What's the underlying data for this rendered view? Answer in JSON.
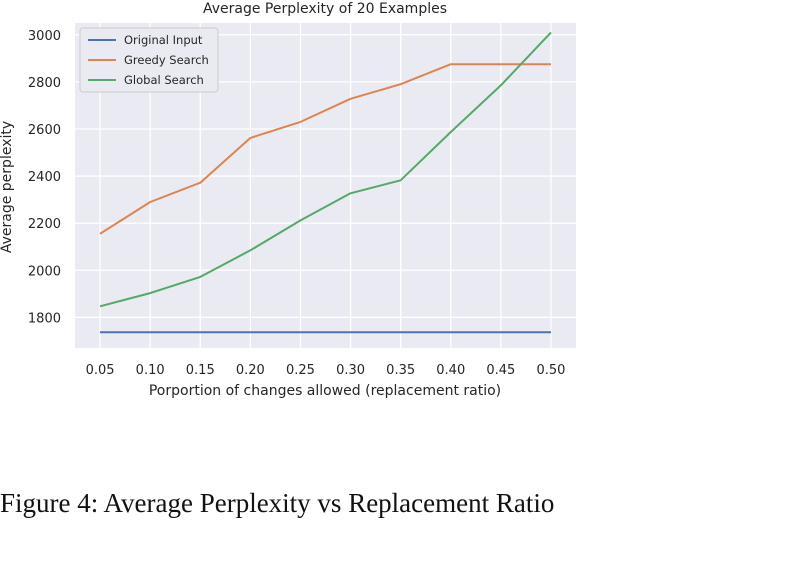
{
  "chart_data": {
    "type": "line",
    "title": "Average Perplexity of 20 Examples",
    "xlabel": "Porportion of changes allowed (replacement ratio)",
    "ylabel": "Average perplexity",
    "x": [
      0.05,
      0.1,
      0.15,
      0.2,
      0.25,
      0.3,
      0.35,
      0.4,
      0.45,
      0.5
    ],
    "x_tick_labels": [
      "0.05",
      "0.10",
      "0.15",
      "0.20",
      "0.25",
      "0.30",
      "0.35",
      "0.40",
      "0.45",
      "0.50"
    ],
    "y_ticks": [
      1800,
      2000,
      2200,
      2400,
      2600,
      2800,
      3000
    ],
    "xlim": [
      0.025,
      0.525
    ],
    "ylim": [
      1670,
      3050
    ],
    "grid": true,
    "legend": "top-left",
    "series": [
      {
        "name": "Original Input",
        "color": "#4c72b0",
        "values": [
          1737,
          1737,
          1737,
          1737,
          1737,
          1737,
          1737,
          1737,
          1737,
          1737
        ]
      },
      {
        "name": "Greedy Search",
        "color": "#dd8452",
        "values": [
          2155,
          2290,
          2372,
          2562,
          2630,
          2728,
          2790,
          2875,
          2875,
          2875
        ]
      },
      {
        "name": "Global Search",
        "color": "#55a868",
        "values": [
          1847,
          1903,
          1972,
          2085,
          2212,
          2327,
          2382,
          2587,
          2785,
          3010
        ]
      }
    ]
  },
  "caption": {
    "label": "Figure 4:",
    "text": "Average Perplexity vs Replacement Ratio"
  }
}
